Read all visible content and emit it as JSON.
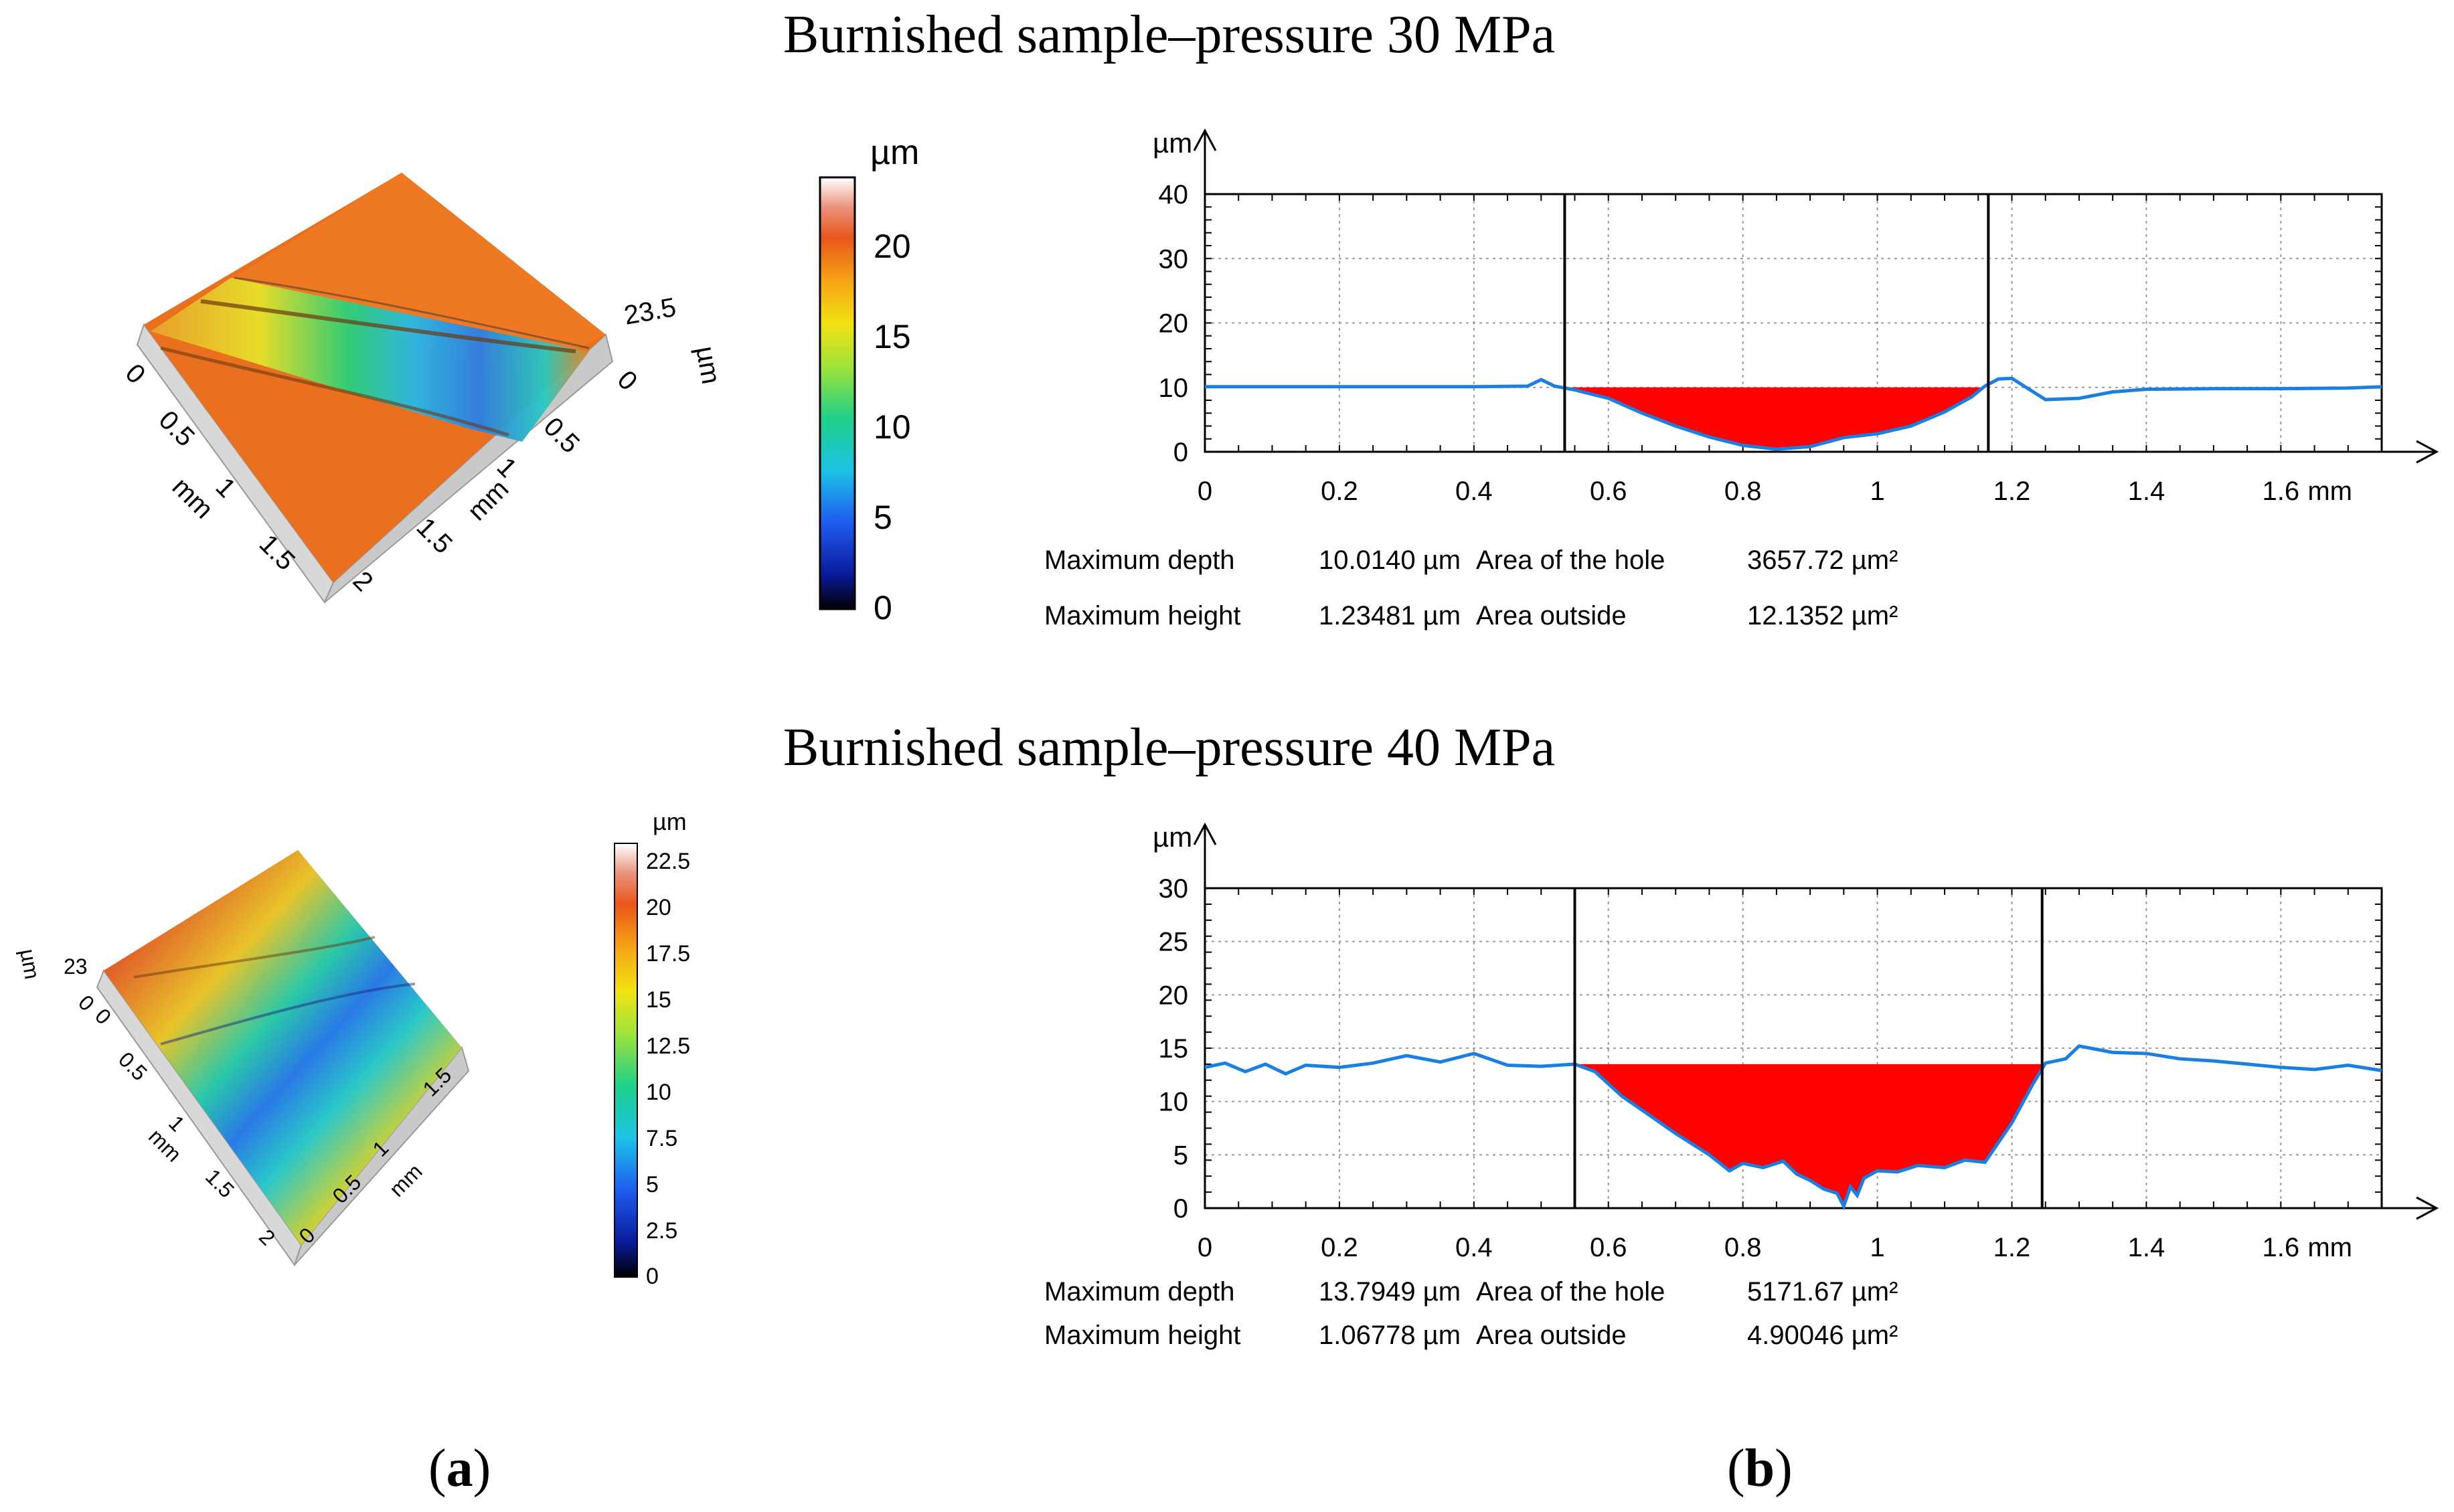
{
  "figure": {
    "panel_a": "a",
    "panel_b": "b"
  },
  "colors": {
    "profile_line": "#1a7fe0",
    "hole_fill": "#ff0000",
    "surface_orange": "#e86a1c"
  },
  "surfaces": [
    {
      "colorbar_unit": "µm",
      "colorbar_ticks": [
        "0",
        "5",
        "10",
        "15",
        "20"
      ],
      "z_label": "23.5",
      "z_unit": "µm",
      "z_zero": "0",
      "axis1_ticks": [
        "0",
        "0.5",
        "1",
        "1.5",
        "2"
      ],
      "axis1_unit": "mm",
      "axis2_ticks": [
        "0",
        "0.5",
        "1",
        "1.5"
      ],
      "axis2_unit": "mm"
    },
    {
      "colorbar_unit": "µm",
      "colorbar_ticks": [
        "0",
        "2.5",
        "5",
        "7.5",
        "10",
        "12.5",
        "15",
        "17.5",
        "20",
        "22.5"
      ],
      "z_label": "23",
      "z_unit": "µm",
      "z_zero": "0",
      "axis1_ticks": [
        "0",
        "0.5",
        "1",
        "1.5",
        "2"
      ],
      "axis1_unit": "mm",
      "axis2_ticks": [
        "0",
        "0.5",
        "1",
        "1.5"
      ],
      "axis2_unit": "mm"
    }
  ],
  "chart_data": [
    {
      "type": "area",
      "title": "Burnished sample–pressure 30 MPa",
      "ylabel": "µm",
      "xunit": "mm",
      "xlim": [
        0,
        1.75
      ],
      "ylim": [
        0,
        40
      ],
      "yticks": [
        "0",
        "10",
        "20",
        "30",
        "40"
      ],
      "xticks": [
        "0",
        "0.2",
        "0.4",
        "0.6",
        "0.8",
        "1",
        "1.2",
        "1.4",
        "1.6"
      ],
      "cursor_x": [
        0.535,
        1.165
      ],
      "hole_level": 10.0,
      "profile_x": [
        0,
        0.1,
        0.2,
        0.3,
        0.4,
        0.48,
        0.5,
        0.52,
        0.55,
        0.6,
        0.65,
        0.7,
        0.75,
        0.8,
        0.85,
        0.9,
        0.95,
        1.0,
        1.05,
        1.1,
        1.14,
        1.16,
        1.18,
        1.2,
        1.25,
        1.3,
        1.35,
        1.4,
        1.5,
        1.6,
        1.7,
        1.75
      ],
      "profile_y": [
        10.1,
        10.1,
        10.1,
        10.1,
        10.1,
        10.2,
        11.2,
        10.2,
        9.6,
        8.3,
        6.0,
        4.0,
        2.3,
        1.0,
        0.4,
        0.8,
        2.2,
        2.8,
        4.0,
        6.2,
        8.5,
        10.2,
        11.3,
        11.4,
        8.1,
        8.3,
        9.3,
        9.7,
        9.8,
        9.8,
        9.9,
        10.1
      ],
      "stats": [
        {
          "label": "Maximum depth",
          "value": "10.0140 µm",
          "label2": "Area of the hole",
          "value2": "3657.72 µm²"
        },
        {
          "label": "Maximum height",
          "value": "1.23481 µm",
          "label2": "Area outside",
          "value2": "12.1352 µm²"
        }
      ]
    },
    {
      "type": "area",
      "title": "Burnished sample–pressure 40 MPa",
      "ylabel": "µm",
      "xunit": "mm",
      "xlim": [
        0,
        1.75
      ],
      "ylim": [
        0,
        30
      ],
      "yticks": [
        "0",
        "5",
        "10",
        "15",
        "20",
        "25",
        "30"
      ],
      "xticks": [
        "0",
        "0.2",
        "0.4",
        "0.6",
        "0.8",
        "1",
        "1.2",
        "1.4",
        "1.6"
      ],
      "cursor_x": [
        0.55,
        1.245
      ],
      "hole_level": 13.5,
      "profile_x": [
        0,
        0.03,
        0.06,
        0.09,
        0.12,
        0.15,
        0.2,
        0.25,
        0.3,
        0.35,
        0.4,
        0.45,
        0.5,
        0.55,
        0.58,
        0.62,
        0.65,
        0.7,
        0.75,
        0.78,
        0.8,
        0.83,
        0.86,
        0.88,
        0.9,
        0.92,
        0.94,
        0.95,
        0.96,
        0.97,
        0.98,
        1.0,
        1.03,
        1.06,
        1.1,
        1.13,
        1.16,
        1.2,
        1.23,
        1.25,
        1.28,
        1.3,
        1.35,
        1.4,
        1.45,
        1.5,
        1.55,
        1.6,
        1.65,
        1.7,
        1.75
      ],
      "profile_y": [
        13.2,
        13.6,
        12.8,
        13.5,
        12.6,
        13.4,
        13.2,
        13.6,
        14.3,
        13.7,
        14.5,
        13.4,
        13.3,
        13.5,
        12.8,
        10.5,
        9.2,
        7.0,
        5.0,
        3.5,
        4.2,
        3.8,
        4.4,
        3.2,
        2.6,
        1.8,
        1.4,
        0.2,
        2.0,
        1.2,
        2.8,
        3.5,
        3.4,
        4.0,
        3.8,
        4.5,
        4.3,
        8.0,
        11.5,
        13.6,
        14.0,
        15.2,
        14.6,
        14.5,
        14.0,
        13.8,
        13.5,
        13.2,
        13.0,
        13.4,
        12.9
      ],
      "stats": [
        {
          "label": "Maximum depth",
          "value": "13.7949 µm",
          "label2": "Area of the hole",
          "value2": "5171.67 µm²"
        },
        {
          "label": "Maximum height",
          "value": "1.06778 µm",
          "label2": "Area outside",
          "value2": "4.90046 µm²"
        }
      ]
    }
  ]
}
